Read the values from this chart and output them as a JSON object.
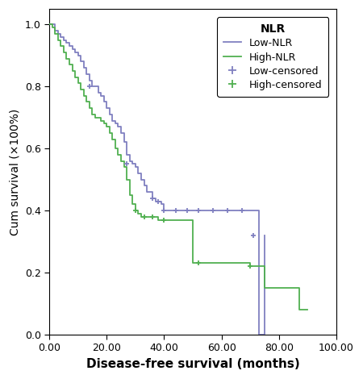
{
  "xlabel": "Disease-free survival (months)",
  "ylabel": "Cum survival (×100%)",
  "xlim": [
    0,
    100
  ],
  "ylim": [
    0.0,
    1.05
  ],
  "xticks": [
    0.0,
    20.0,
    40.0,
    60.0,
    80.0,
    100.0
  ],
  "yticks": [
    0.0,
    0.2,
    0.4,
    0.6,
    0.8,
    1.0
  ],
  "low_color": "#8080c0",
  "high_color": "#50b050",
  "low_nlr_x": [
    0,
    2,
    3,
    4,
    5,
    6,
    7,
    8,
    9,
    10,
    11,
    12,
    13,
    14,
    15,
    17,
    18,
    19,
    20,
    21,
    22,
    23,
    24,
    25,
    26,
    27,
    28,
    29,
    30,
    31,
    32,
    33,
    34,
    36,
    37,
    38,
    39,
    40,
    45,
    50,
    55,
    60,
    65,
    70,
    73,
    73.1,
    75
  ],
  "low_nlr_y": [
    1.0,
    0.98,
    0.97,
    0.96,
    0.95,
    0.94,
    0.93,
    0.92,
    0.91,
    0.9,
    0.88,
    0.86,
    0.84,
    0.82,
    0.8,
    0.78,
    0.77,
    0.75,
    0.73,
    0.71,
    0.69,
    0.68,
    0.67,
    0.65,
    0.62,
    0.58,
    0.56,
    0.55,
    0.54,
    0.52,
    0.5,
    0.48,
    0.46,
    0.44,
    0.43,
    0.43,
    0.42,
    0.4,
    0.4,
    0.4,
    0.4,
    0.4,
    0.4,
    0.4,
    0.32,
    0.0,
    0.32
  ],
  "low_cens_x": [
    14,
    27,
    36,
    38,
    40,
    44,
    48,
    52,
    57,
    62,
    67,
    71
  ],
  "low_cens_y": [
    0.8,
    0.55,
    0.44,
    0.43,
    0.4,
    0.4,
    0.4,
    0.4,
    0.4,
    0.4,
    0.4,
    0.32
  ],
  "high_nlr_x": [
    0,
    1,
    2,
    3,
    4,
    5,
    6,
    7,
    8,
    9,
    10,
    11,
    12,
    13,
    14,
    15,
    16,
    17,
    18,
    19,
    20,
    21,
    22,
    23,
    24,
    25,
    26,
    27,
    28,
    29,
    30,
    31,
    32,
    33,
    34,
    35,
    36,
    37,
    38,
    50,
    55,
    65,
    70,
    75,
    80,
    87,
    90
  ],
  "high_nlr_y": [
    1.0,
    0.99,
    0.97,
    0.95,
    0.93,
    0.91,
    0.89,
    0.87,
    0.85,
    0.83,
    0.81,
    0.79,
    0.77,
    0.75,
    0.73,
    0.71,
    0.7,
    0.7,
    0.69,
    0.68,
    0.67,
    0.65,
    0.63,
    0.6,
    0.58,
    0.56,
    0.54,
    0.5,
    0.45,
    0.42,
    0.4,
    0.39,
    0.38,
    0.38,
    0.38,
    0.38,
    0.38,
    0.38,
    0.37,
    0.23,
    0.23,
    0.23,
    0.22,
    0.15,
    0.15,
    0.08,
    0.08
  ],
  "high_cens_x": [
    30,
    33,
    36,
    40,
    52,
    70
  ],
  "high_cens_y": [
    0.4,
    0.38,
    0.38,
    0.37,
    0.23,
    0.22
  ],
  "legend_title": "NLR",
  "figsize": [
    4.5,
    4.7
  ],
  "dpi": 100
}
